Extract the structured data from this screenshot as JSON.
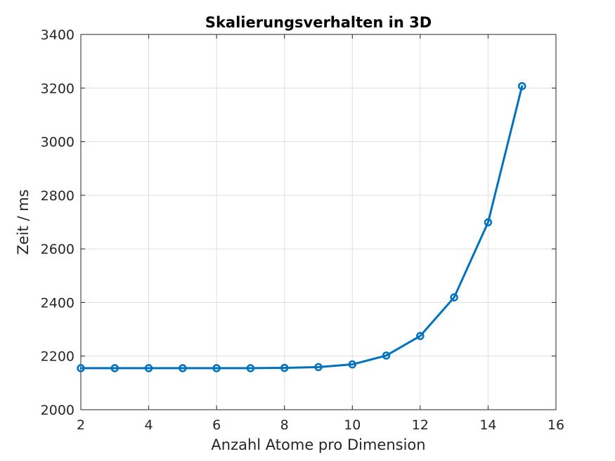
{
  "chart_data": {
    "type": "line",
    "title": "Skalierungsverhalten in 3D",
    "xlabel": "Anzahl Atome pro Dimension",
    "ylabel": "Zeit / ms",
    "xlim": [
      2,
      16
    ],
    "ylim": [
      2000,
      3400
    ],
    "xticks": [
      2,
      4,
      6,
      8,
      10,
      12,
      14,
      16
    ],
    "yticks": [
      2000,
      2200,
      2400,
      2600,
      2800,
      3000,
      3200,
      3400
    ],
    "grid": true,
    "series": [
      {
        "color": "#0072BD",
        "marker": "circle",
        "x": [
          2,
          3,
          4,
          5,
          6,
          7,
          8,
          9,
          10,
          11,
          12,
          13,
          14,
          15
        ],
        "y": [
          2155,
          2155,
          2155,
          2155,
          2155,
          2155,
          2156,
          2159,
          2169,
          2202,
          2275,
          2419,
          2699,
          3207
        ]
      }
    ]
  }
}
